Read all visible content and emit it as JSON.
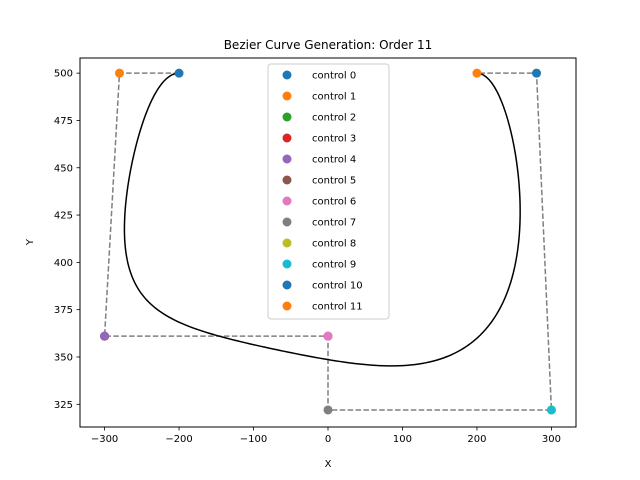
{
  "chart_data": {
    "type": "line",
    "title": "Bezier Curve Generation: Order 11",
    "xlabel": "X",
    "ylabel": "Y",
    "xlim": [
      -333,
      333
    ],
    "ylim": [
      313,
      508
    ],
    "xticks": [
      -300,
      -200,
      -100,
      0,
      100,
      200,
      300
    ],
    "yticks": [
      325,
      350,
      375,
      400,
      425,
      450,
      475,
      500
    ],
    "grid": false,
    "legend_position": "top-center",
    "control_points": [
      {
        "name": "control 0",
        "x": -200,
        "y": 500,
        "color": "#1f77b4"
      },
      {
        "name": "control 1",
        "x": -280,
        "y": 500,
        "color": "#ff7f0e"
      },
      {
        "name": "control 2",
        "x": -300,
        "y": 361,
        "color": "#2ca02c"
      },
      {
        "name": "control 3",
        "x": -300,
        "y": 361,
        "color": "#d62728"
      },
      {
        "name": "control 4",
        "x": -300,
        "y": 361,
        "color": "#9467bd"
      },
      {
        "name": "control 5",
        "x": 0,
        "y": 361,
        "color": "#8c564b"
      },
      {
        "name": "control 6",
        "x": 0,
        "y": 361,
        "color": "#e377c2"
      },
      {
        "name": "control 7",
        "x": 0,
        "y": 322,
        "color": "#7f7f7f"
      },
      {
        "name": "control 8",
        "x": 300,
        "y": 322,
        "color": "#bcbd22"
      },
      {
        "name": "control 9",
        "x": 300,
        "y": 322,
        "color": "#17becf"
      },
      {
        "name": "control 10",
        "x": 280,
        "y": 500,
        "color": "#1f77b4"
      },
      {
        "name": "control 11",
        "x": 200,
        "y": 500,
        "color": "#ff7f0e"
      }
    ],
    "polygon_color": "#808080",
    "curve_color": "#000000"
  }
}
